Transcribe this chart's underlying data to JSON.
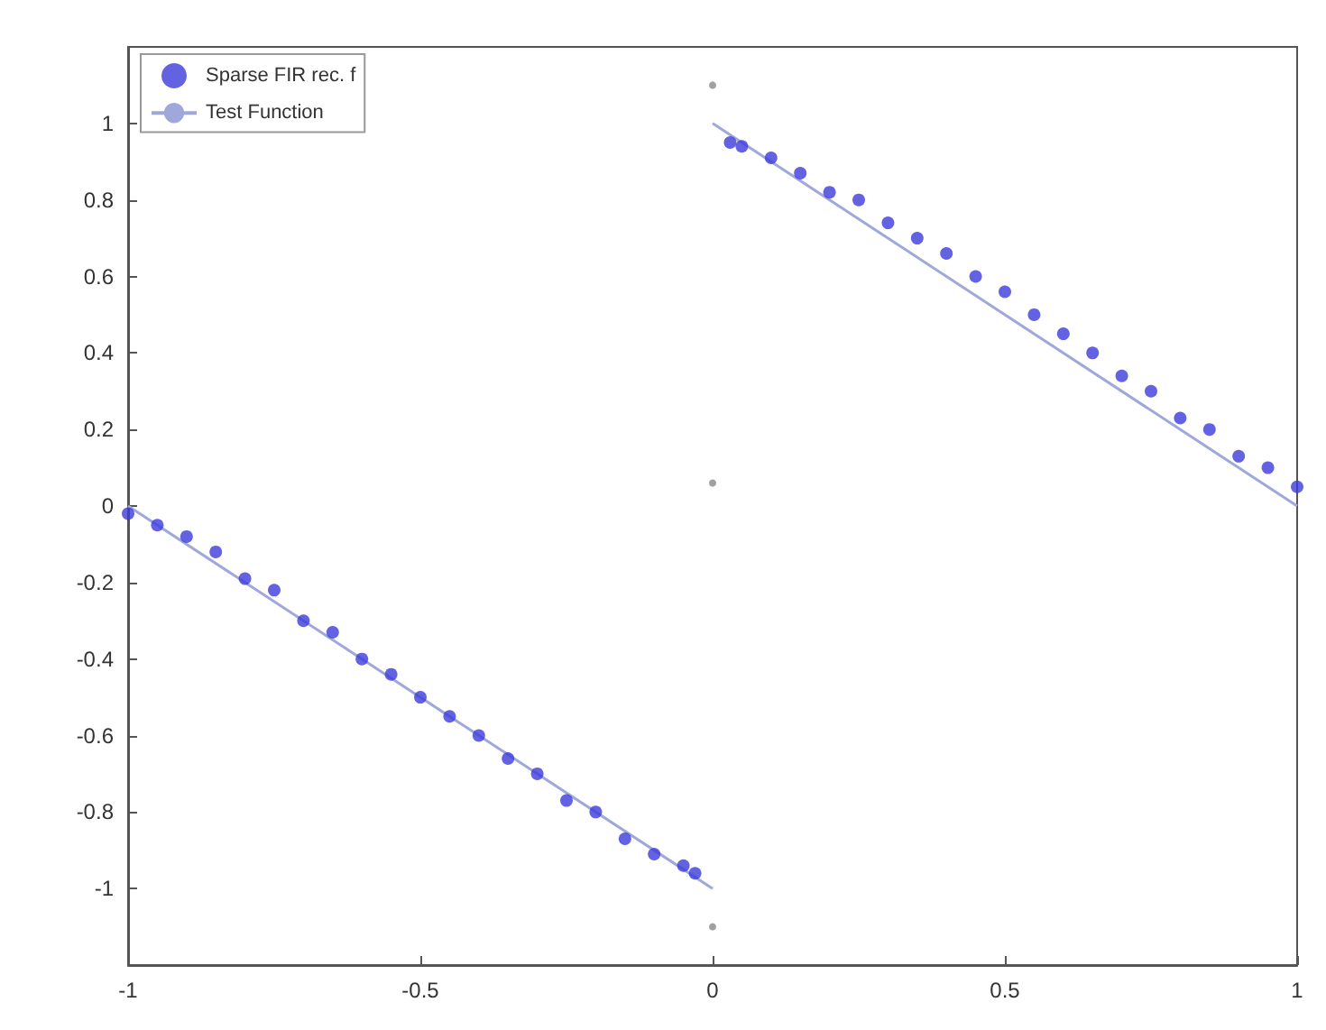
{
  "chart_data": {
    "type": "scatter",
    "xlim": [
      -1,
      1
    ],
    "xticks": [
      -1,
      -0.5,
      0,
      0.5,
      1
    ],
    "ylim": [
      -1.2,
      1.2
    ],
    "yticks": [
      -1,
      -0.8,
      -0.6,
      -0.4,
      -0.2,
      0,
      0.2,
      0.4,
      0.6,
      0.8,
      1
    ],
    "grid": false,
    "legend": "top left",
    "marker": "circle",
    "series": [
      {
        "name": "Sparse FIR rec. f",
        "color": "#3b3bdc",
        "x": [
          -1,
          -0.95,
          -0.9,
          -0.85,
          -0.8,
          -0.75,
          -0.7,
          -0.65,
          -0.6,
          -0.55,
          -0.5,
          -0.45,
          -0.4,
          -0.35,
          -0.3,
          -0.25,
          -0.2,
          -0.15,
          -0.1,
          -0.05,
          -0.03,
          0.03,
          0.05,
          0.1,
          0.15,
          0.2,
          0.25,
          0.3,
          0.35,
          0.4,
          0.45,
          0.5,
          0.55,
          0.6,
          0.65,
          0.7,
          0.75,
          0.8,
          0.85,
          0.9,
          0.95,
          1
        ],
        "values": [
          -0.02,
          -0.05,
          -0.08,
          -0.12,
          -0.19,
          -0.22,
          -0.3,
          -0.33,
          -0.4,
          -0.44,
          -0.5,
          -0.55,
          -0.6,
          -0.66,
          -0.7,
          -0.77,
          -0.8,
          -0.87,
          -0.91,
          -0.94,
          -0.96,
          0.95,
          0.94,
          0.91,
          0.87,
          0.82,
          0.8,
          0.74,
          0.7,
          0.66,
          0.6,
          0.56,
          0.5,
          0.45,
          0.4,
          0.34,
          0.3,
          0.23,
          0.2,
          0.13,
          0.1,
          0.05
        ]
      },
      {
        "name": "Test Function",
        "type": "line",
        "marker": "none",
        "color": "#9fa8da",
        "x": [
          -1,
          0
        ],
        "values": [
          0,
          -1
        ]
      },
      {
        "type": "line",
        "marker": "none",
        "color": "#9fa8da",
        "x": [
          0,
          1
        ],
        "values": [
          1,
          0
        ]
      },
      {
        "type": "scatter",
        "color": "#888888",
        "x": [
          0,
          0,
          0
        ],
        "values": [
          1.1,
          0.06,
          -1.1
        ]
      }
    ]
  }
}
